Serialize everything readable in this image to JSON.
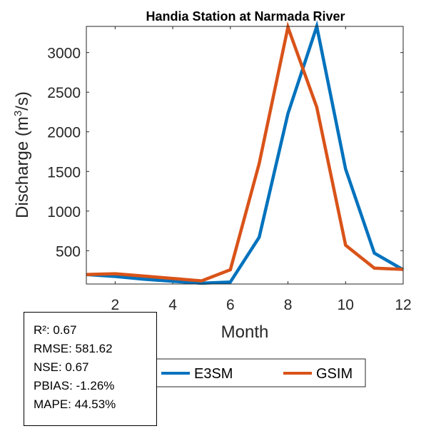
{
  "chart_data": {
    "type": "line",
    "title": "Handia  Station at  Narmada  River",
    "xlabel": "Month",
    "ylabel_main": "Discharge (m",
    "ylabel_sup": "3",
    "ylabel_end": "/s)",
    "xlim": [
      1,
      12
    ],
    "ylim": [
      80,
      3330
    ],
    "xticks": [
      2,
      4,
      6,
      8,
      10,
      12
    ],
    "yticks": [
      500,
      1000,
      1500,
      2000,
      2500,
      3000
    ],
    "x": [
      1,
      2,
      3,
      4,
      5,
      6,
      7,
      8,
      9,
      10,
      11,
      12
    ],
    "series": [
      {
        "name": "E3SM",
        "color": "#0072BD",
        "values": [
          200,
          175,
          140,
          115,
          90,
          105,
          670,
          2230,
          3330,
          1530,
          470,
          260
        ]
      },
      {
        "name": "GSIM",
        "color": "#D95319",
        "values": [
          200,
          210,
          180,
          150,
          120,
          260,
          1600,
          3320,
          2310,
          570,
          280,
          265
        ]
      }
    ],
    "legend": [
      "E3SM",
      "GSIM"
    ],
    "legend_position": "bottom"
  },
  "stats": {
    "r2": "R²: 0.67",
    "rmse": "RMSE: 581.62",
    "nse": "NSE: 0.67",
    "pbias": "PBIAS: -1.26%",
    "mape": "MAPE: 44.53%"
  }
}
